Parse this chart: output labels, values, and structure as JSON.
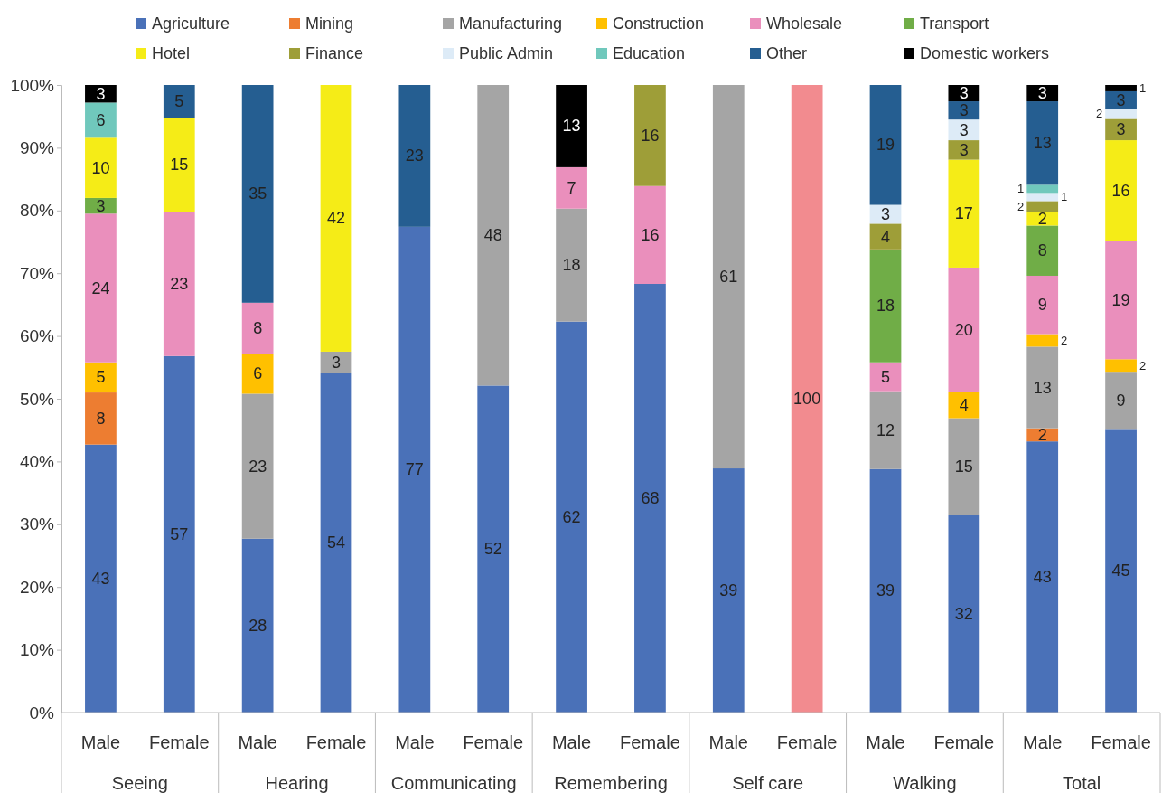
{
  "chart_data": {
    "type": "bar",
    "stacked": true,
    "legend": "top",
    "data_labels": false,
    "categories": [
      "Male",
      "Female",
      "Male",
      "Female",
      "Male",
      "Female",
      "Male",
      "Female",
      "Male",
      "Female",
      "Male",
      "Female",
      "Male",
      "Female"
    ],
    "annotations": [
      "Seeing",
      "Hearing",
      "Communicating",
      "Remembering",
      "Self care",
      "Walking",
      "Total"
    ],
    "ylim": [
      0,
      100
    ],
    "yticks": [
      {
        "value": 0,
        "label": "0%"
      },
      {
        "value": 10,
        "label": "10%"
      },
      {
        "value": 20,
        "label": "20%"
      },
      {
        "value": 30,
        "label": "30%"
      },
      {
        "value": 40,
        "label": "40%"
      },
      {
        "value": 50,
        "label": "50%"
      },
      {
        "value": 60,
        "label": "60%"
      },
      {
        "value": 70,
        "label": "70%"
      },
      {
        "value": 80,
        "label": "80%"
      },
      {
        "value": 90,
        "label": "90%"
      },
      {
        "value": 100,
        "label": "100%"
      }
    ],
    "series": [
      {
        "name": "Agriculture",
        "color": "#4a71b8",
        "values": [
          42.7,
          56.8,
          27.7,
          54.1,
          77.4,
          52.1,
          62.3,
          68.3,
          38.9,
          null,
          38.8,
          31.5,
          43.2,
          45.2
        ],
        "value_labels": [
          "43",
          "57",
          "28",
          "54",
          "77",
          "52",
          "62",
          "68",
          "39",
          null,
          "39",
          "32",
          "43",
          "45"
        ]
      },
      {
        "name": "Mining",
        "color": "#ed7d31",
        "values": [
          8.3,
          null,
          null,
          null,
          null,
          null,
          null,
          null,
          null,
          null,
          null,
          null,
          2.1,
          null
        ],
        "value_labels": [
          "8",
          null,
          null,
          null,
          null,
          null,
          null,
          null,
          null,
          null,
          null,
          null,
          "2",
          null
        ]
      },
      {
        "name": "Manufacturing",
        "color": "#a5a5a5",
        "values": [
          null,
          null,
          23.1,
          3.4,
          null,
          47.9,
          18.0,
          null,
          61.1,
          null,
          12.4,
          15.4,
          13.0,
          9.1
        ],
        "value_labels": [
          null,
          null,
          "23",
          "3",
          null,
          "48",
          "18",
          null,
          "61",
          null,
          "12",
          "15",
          "13",
          "9"
        ]
      },
      {
        "name": "Construction",
        "color": "#ffc000",
        "values": [
          4.8,
          null,
          6.4,
          null,
          null,
          null,
          null,
          null,
          null,
          null,
          null,
          4.2,
          2.0,
          2.0
        ],
        "value_labels": [
          "5",
          null,
          "6",
          null,
          null,
          null,
          null,
          null,
          null,
          null,
          null,
          "4",
          "2",
          "2"
        ]
      },
      {
        "name": "Wholesale",
        "color": "#ea8fbc",
        "colors": [
          "#ea8fbc",
          "#ea8fbc",
          "#ea8fbc",
          null,
          null,
          null,
          "#ea8fbc",
          "#ea8fbc",
          null,
          "#f28b8f",
          "#ea8fbc",
          "#ea8fbc",
          "#ea8fbc",
          "#ea8fbc"
        ],
        "values": [
          23.7,
          22.9,
          8.1,
          null,
          null,
          null,
          6.6,
          15.6,
          null,
          100,
          4.6,
          19.8,
          9.3,
          18.8
        ],
        "value_labels": [
          "24",
          "23",
          "8",
          null,
          null,
          null,
          "7",
          "16",
          null,
          "100",
          "5",
          "20",
          "9",
          "19"
        ]
      },
      {
        "name": "Transport",
        "color": "#70ad47",
        "values": [
          2.5,
          null,
          null,
          null,
          null,
          null,
          null,
          null,
          null,
          null,
          18.0,
          null,
          8.0,
          null
        ],
        "value_labels": [
          "3",
          null,
          null,
          null,
          null,
          null,
          null,
          null,
          null,
          null,
          "18",
          null,
          "8",
          null
        ]
      },
      {
        "name": "Hotel",
        "color": "#f5ec17",
        "values": [
          9.6,
          15.1,
          null,
          42.5,
          null,
          null,
          null,
          null,
          null,
          null,
          null,
          17.2,
          2.2,
          16.1
        ],
        "value_labels": [
          "10",
          "15",
          null,
          "42",
          null,
          null,
          null,
          null,
          null,
          null,
          null,
          "17",
          "2",
          "16"
        ]
      },
      {
        "name": "Finance",
        "color": "#9e9e38",
        "values": [
          null,
          null,
          null,
          null,
          null,
          null,
          null,
          16.1,
          null,
          null,
          4.1,
          3.1,
          1.7,
          3.4
        ],
        "value_labels": [
          null,
          null,
          null,
          null,
          null,
          null,
          null,
          "16",
          null,
          null,
          "4",
          "3",
          "2",
          "3"
        ]
      },
      {
        "name": "Public Admin",
        "color": "#ddebf7",
        "values": [
          null,
          null,
          null,
          null,
          null,
          null,
          null,
          null,
          null,
          null,
          3.0,
          3.3,
          1.3,
          1.6
        ],
        "value_labels": [
          null,
          null,
          null,
          null,
          null,
          null,
          null,
          null,
          null,
          null,
          "3",
          "3",
          "1",
          "2"
        ]
      },
      {
        "name": "Education",
        "color": "#70c8bc",
        "values": [
          5.6,
          null,
          null,
          null,
          null,
          null,
          null,
          null,
          null,
          null,
          null,
          null,
          1.3,
          null
        ],
        "value_labels": [
          "6",
          null,
          null,
          null,
          null,
          null,
          null,
          null,
          null,
          null,
          null,
          null,
          "1",
          null
        ]
      },
      {
        "name": "Other",
        "color": "#255e91",
        "values": [
          null,
          5.2,
          34.7,
          null,
          22.6,
          null,
          null,
          null,
          null,
          null,
          19.1,
          2.9,
          13.3,
          2.8
        ],
        "value_labels": [
          null,
          "5",
          "35",
          null,
          "23",
          null,
          null,
          null,
          null,
          null,
          "19",
          "3",
          "13",
          "3"
        ]
      },
      {
        "name": "Domestic workers",
        "color": "#000000",
        "values": [
          2.8,
          null,
          null,
          null,
          null,
          null,
          13.1,
          null,
          null,
          null,
          null,
          2.6,
          2.6,
          1.0
        ],
        "value_labels": [
          "3",
          null,
          null,
          null,
          null,
          null,
          "13",
          null,
          null,
          null,
          null,
          "3",
          "3",
          "1"
        ]
      }
    ]
  }
}
